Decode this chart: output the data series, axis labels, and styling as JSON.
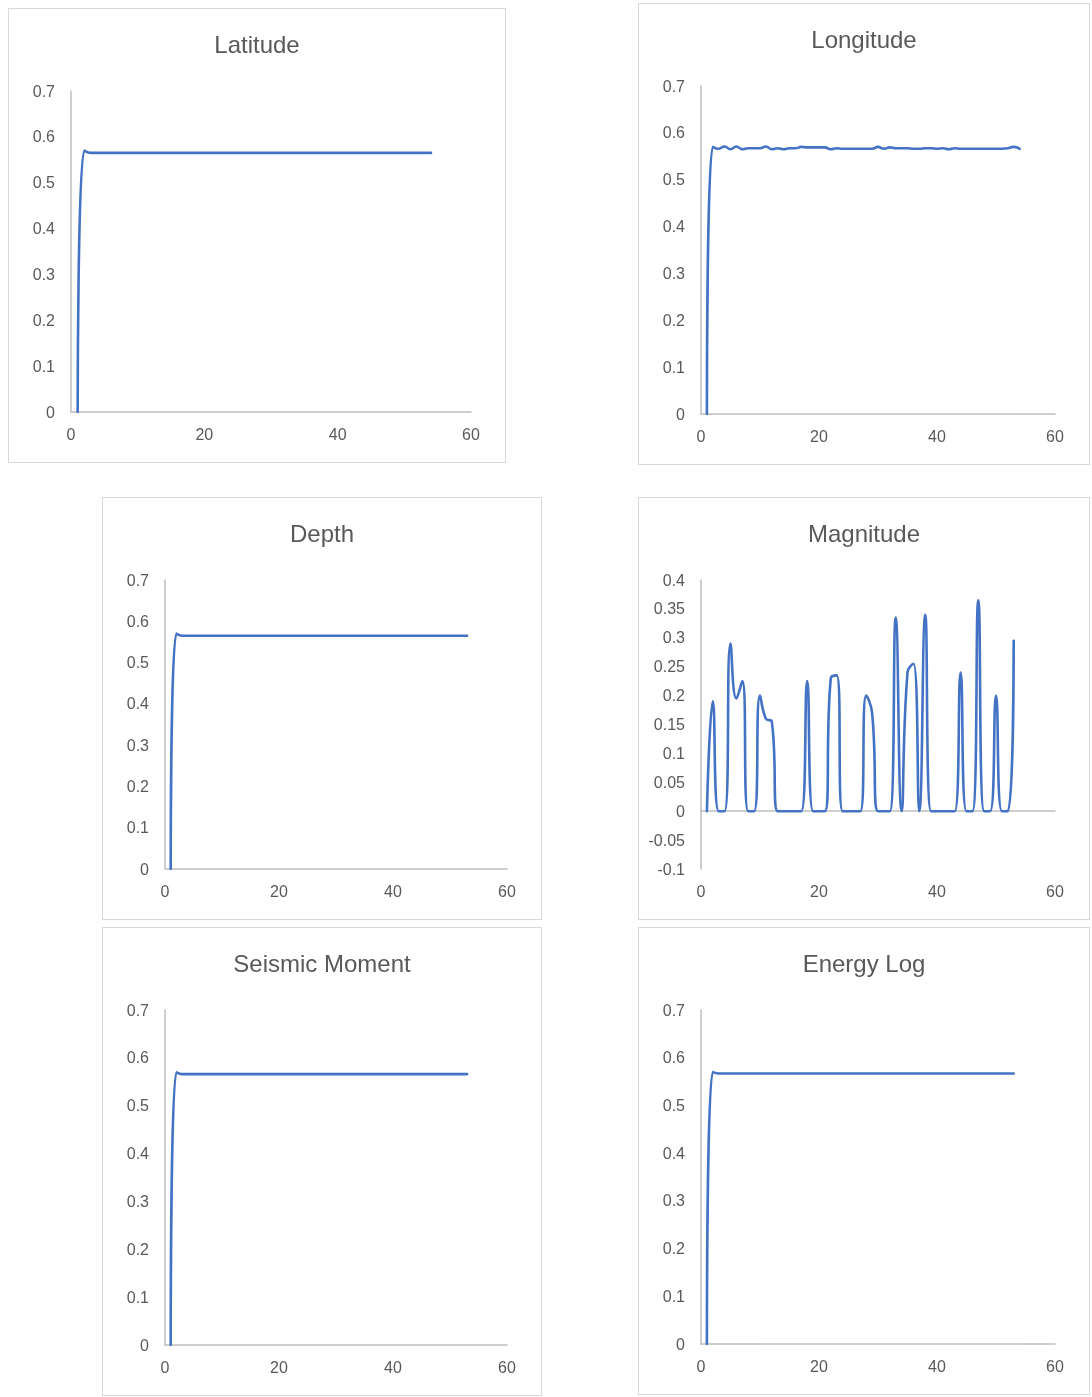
{
  "chart_data": [
    {
      "type": "line",
      "title": "Latitude",
      "x": [
        1,
        2,
        3,
        4,
        5,
        6,
        7,
        8,
        9,
        10,
        11,
        12,
        13,
        14,
        15,
        16,
        17,
        18,
        19,
        20,
        21,
        22,
        23,
        24,
        25,
        26,
        27,
        28,
        29,
        30,
        31,
        32,
        33,
        34,
        35,
        36,
        37,
        38,
        39,
        40,
        41,
        42,
        43,
        44,
        45,
        46,
        47,
        48,
        49,
        50,
        51,
        52,
        53,
        54
      ],
      "series": [
        {
          "color": "#4472c4",
          "values": [
            0,
            0.57,
            0.565,
            0.565,
            0.565,
            0.565,
            0.565,
            0.565,
            0.565,
            0.565,
            0.565,
            0.565,
            0.565,
            0.565,
            0.565,
            0.565,
            0.565,
            0.565,
            0.565,
            0.565,
            0.565,
            0.565,
            0.565,
            0.565,
            0.565,
            0.565,
            0.565,
            0.565,
            0.565,
            0.565,
            0.565,
            0.565,
            0.565,
            0.565,
            0.565,
            0.565,
            0.565,
            0.565,
            0.565,
            0.565,
            0.565,
            0.565,
            0.565,
            0.565,
            0.565,
            0.565,
            0.565,
            0.565,
            0.565,
            0.565,
            0.565,
            0.565,
            0.565,
            0.565
          ]
        }
      ],
      "xlim": [
        0,
        60
      ],
      "xticks": [
        0,
        20,
        40,
        60
      ],
      "ylim": [
        0,
        0.7
      ],
      "yticks": [
        0,
        0.1,
        0.2,
        0.3,
        0.4,
        0.5,
        0.6,
        0.7
      ]
    },
    {
      "type": "line",
      "title": "Longitude",
      "x": [
        1,
        2,
        3,
        4,
        5,
        6,
        7,
        8,
        9,
        10,
        11,
        12,
        13,
        14,
        15,
        16,
        17,
        18,
        19,
        20,
        21,
        22,
        23,
        24,
        25,
        26,
        27,
        28,
        29,
        30,
        31,
        32,
        33,
        34,
        35,
        36,
        37,
        38,
        39,
        40,
        41,
        42,
        43,
        44,
        45,
        46,
        47,
        48,
        49,
        50,
        51,
        52,
        53,
        54
      ],
      "series": [
        {
          "color": "#4472c4",
          "values": [
            0,
            0.57,
            0.566,
            0.571,
            0.565,
            0.571,
            0.565,
            0.567,
            0.567,
            0.567,
            0.571,
            0.565,
            0.567,
            0.565,
            0.567,
            0.567,
            0.57,
            0.569,
            0.569,
            0.569,
            0.569,
            0.565,
            0.567,
            0.566,
            0.566,
            0.566,
            0.566,
            0.566,
            0.566,
            0.57,
            0.566,
            0.569,
            0.567,
            0.567,
            0.567,
            0.566,
            0.566,
            0.567,
            0.567,
            0.566,
            0.567,
            0.565,
            0.567,
            0.566,
            0.566,
            0.566,
            0.566,
            0.566,
            0.566,
            0.566,
            0.566,
            0.567,
            0.57,
            0.566
          ]
        }
      ],
      "xlim": [
        0,
        60
      ],
      "xticks": [
        0,
        20,
        40,
        60
      ],
      "ylim": [
        0,
        0.7
      ],
      "yticks": [
        0,
        0.1,
        0.2,
        0.3,
        0.4,
        0.5,
        0.6,
        0.7
      ]
    },
    {
      "type": "line",
      "title": "Depth",
      "x": [
        1,
        2,
        3,
        4,
        5,
        6,
        7,
        8,
        9,
        10,
        11,
        12,
        13,
        14,
        15,
        16,
        17,
        18,
        19,
        20,
        21,
        22,
        23,
        24,
        25,
        26,
        27,
        28,
        29,
        30,
        31,
        32,
        33,
        34,
        35,
        36,
        37,
        38,
        39,
        40,
        41,
        42,
        43,
        44,
        45,
        46,
        47,
        48,
        49,
        50,
        51,
        52,
        53
      ],
      "series": [
        {
          "color": "#4472c4",
          "values": [
            0,
            0.57,
            0.565,
            0.565,
            0.565,
            0.565,
            0.565,
            0.565,
            0.565,
            0.565,
            0.565,
            0.565,
            0.565,
            0.565,
            0.565,
            0.565,
            0.565,
            0.565,
            0.565,
            0.565,
            0.565,
            0.565,
            0.565,
            0.565,
            0.565,
            0.565,
            0.565,
            0.565,
            0.565,
            0.565,
            0.565,
            0.565,
            0.565,
            0.565,
            0.565,
            0.565,
            0.565,
            0.565,
            0.565,
            0.565,
            0.565,
            0.565,
            0.565,
            0.565,
            0.565,
            0.565,
            0.565,
            0.565,
            0.565,
            0.565,
            0.565,
            0.565,
            0.565
          ]
        }
      ],
      "xlim": [
        0,
        60
      ],
      "xticks": [
        0,
        20,
        40,
        60
      ],
      "ylim": [
        0,
        0.7
      ],
      "yticks": [
        0,
        0.1,
        0.2,
        0.3,
        0.4,
        0.5,
        0.6,
        0.7
      ]
    },
    {
      "type": "line",
      "title": "Magnitude",
      "x": [
        1,
        2,
        3,
        4,
        5,
        6,
        7,
        8,
        9,
        10,
        11,
        12,
        13,
        14,
        15,
        16,
        17,
        18,
        19,
        20,
        21,
        22,
        23,
        24,
        25,
        26,
        27,
        28,
        29,
        30,
        31,
        32,
        33,
        34,
        35,
        36,
        37,
        38,
        39,
        40,
        41,
        42,
        43,
        44,
        45,
        46,
        47,
        48,
        49,
        50,
        51,
        52,
        53
      ],
      "series": [
        {
          "color": "#4472c4",
          "values": [
            0,
            0.19,
            0,
            0,
            0.29,
            0.195,
            0.225,
            0,
            0,
            0.2,
            0.16,
            0.155,
            0,
            0,
            0,
            0,
            0,
            0.225,
            0,
            0,
            0,
            0.23,
            0.235,
            0,
            0,
            0,
            0,
            0.2,
            0.17,
            0,
            0,
            0,
            0.335,
            0,
            0.24,
            0.255,
            0,
            0.34,
            0,
            0,
            0,
            0,
            0,
            0.24,
            0,
            0,
            0.365,
            0,
            0,
            0.2,
            0,
            0,
            0.295
          ]
        }
      ],
      "xlim": [
        0,
        60
      ],
      "xticks": [
        0,
        20,
        40,
        60
      ],
      "ylim": [
        -0.1,
        0.4
      ],
      "yticks": [
        -0.1,
        -0.05,
        0,
        0.05,
        0.1,
        0.15,
        0.2,
        0.25,
        0.3,
        0.35,
        0.4
      ]
    },
    {
      "type": "line",
      "title": "Seismic Moment",
      "x": [
        1,
        2,
        3,
        4,
        5,
        6,
        7,
        8,
        9,
        10,
        11,
        12,
        13,
        14,
        15,
        16,
        17,
        18,
        19,
        20,
        21,
        22,
        23,
        24,
        25,
        26,
        27,
        28,
        29,
        30,
        31,
        32,
        33,
        34,
        35,
        36,
        37,
        38,
        39,
        40,
        41,
        42,
        43,
        44,
        45,
        46,
        47,
        48,
        49,
        50,
        51,
        52,
        53
      ],
      "series": [
        {
          "color": "#4472c4",
          "values": [
            0,
            0.57,
            0.566,
            0.566,
            0.566,
            0.566,
            0.566,
            0.566,
            0.566,
            0.566,
            0.566,
            0.566,
            0.566,
            0.566,
            0.566,
            0.566,
            0.566,
            0.566,
            0.566,
            0.566,
            0.566,
            0.566,
            0.566,
            0.566,
            0.566,
            0.566,
            0.566,
            0.566,
            0.566,
            0.566,
            0.566,
            0.566,
            0.566,
            0.566,
            0.566,
            0.566,
            0.566,
            0.566,
            0.566,
            0.566,
            0.566,
            0.566,
            0.566,
            0.566,
            0.566,
            0.566,
            0.566,
            0.566,
            0.566,
            0.566,
            0.566,
            0.566,
            0.566
          ]
        }
      ],
      "xlim": [
        0,
        60
      ],
      "xticks": [
        0,
        20,
        40,
        60
      ],
      "ylim": [
        0,
        0.7
      ],
      "yticks": [
        0,
        0.1,
        0.2,
        0.3,
        0.4,
        0.5,
        0.6,
        0.7
      ]
    },
    {
      "type": "line",
      "title": "Energy Log",
      "x": [
        1,
        2,
        3,
        4,
        5,
        6,
        7,
        8,
        9,
        10,
        11,
        12,
        13,
        14,
        15,
        16,
        17,
        18,
        19,
        20,
        21,
        22,
        23,
        24,
        25,
        26,
        27,
        28,
        29,
        30,
        31,
        32,
        33,
        34,
        35,
        36,
        37,
        38,
        39,
        40,
        41,
        42,
        43,
        44,
        45,
        46,
        47,
        48,
        49,
        50,
        51,
        52,
        53
      ],
      "series": [
        {
          "color": "#4472c4",
          "values": [
            0,
            0.57,
            0.567,
            0.567,
            0.567,
            0.567,
            0.567,
            0.567,
            0.567,
            0.567,
            0.567,
            0.567,
            0.567,
            0.567,
            0.567,
            0.567,
            0.567,
            0.567,
            0.567,
            0.567,
            0.567,
            0.567,
            0.567,
            0.567,
            0.567,
            0.567,
            0.567,
            0.567,
            0.567,
            0.567,
            0.567,
            0.567,
            0.567,
            0.567,
            0.567,
            0.567,
            0.567,
            0.567,
            0.567,
            0.567,
            0.567,
            0.567,
            0.567,
            0.567,
            0.567,
            0.567,
            0.567,
            0.567,
            0.567,
            0.567,
            0.567,
            0.567,
            0.567
          ]
        }
      ],
      "xlim": [
        0,
        60
      ],
      "xticks": [
        0,
        20,
        40,
        60
      ],
      "ylim": [
        0,
        0.7
      ],
      "yticks": [
        0,
        0.1,
        0.2,
        0.3,
        0.4,
        0.5,
        0.6,
        0.7
      ]
    }
  ]
}
